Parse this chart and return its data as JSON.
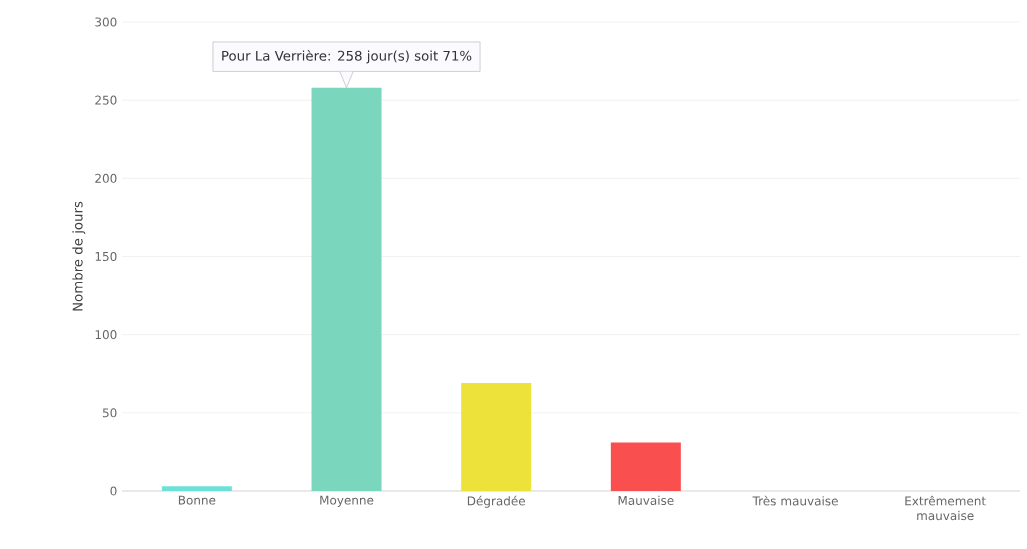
{
  "chart_data": {
    "type": "bar",
    "ylabel": "Nombre de jours",
    "categories": [
      "Bonne",
      "Moyenne",
      "Dégradée",
      "Mauvaise",
      "Très mauvaise",
      "Extrêmement mauvaise"
    ],
    "values": [
      3,
      258,
      69,
      31,
      0,
      0
    ],
    "colors": [
      "#6ee0d8",
      "#7ad6bd",
      "#ece23a",
      "#f94f4f",
      "#c0392b",
      "#8e44ad"
    ],
    "ylim": [
      0,
      300
    ],
    "yticks": [
      0,
      50,
      100,
      150,
      200,
      250,
      300
    ],
    "grid": "y",
    "annotations": [
      {
        "text": "Pour La Verrière: 258 jour(s) soit 71%",
        "x": "Moyenne",
        "y": 258
      }
    ]
  }
}
